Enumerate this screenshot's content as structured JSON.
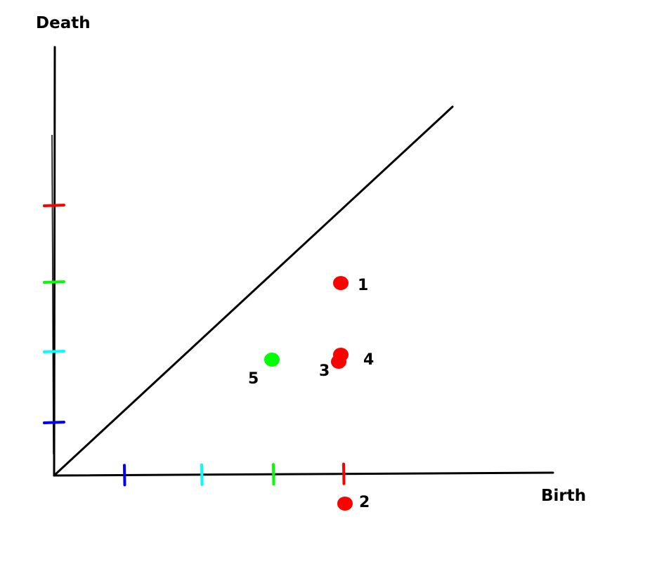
{
  "chart_data": {
    "type": "scatter",
    "title": "",
    "xlabel": "Birth",
    "ylabel": "Death",
    "grid": false,
    "xlim": [
      0,
      7.1
    ],
    "ylim": [
      -0.4,
      6.1
    ],
    "diagonal": {
      "from": [
        0,
        0
      ],
      "to": [
        5.67,
        5.25
      ]
    },
    "x_ticks": [
      {
        "value": 1,
        "color": "#0000ff"
      },
      {
        "value": 2.1,
        "color": "#00ffff"
      },
      {
        "value": 3.12,
        "color": "#00ff00"
      },
      {
        "value": 4.12,
        "color": "#ff0000"
      }
    ],
    "y_ticks": [
      {
        "value": 0.75,
        "color": "#0000ff"
      },
      {
        "value": 1.76,
        "color": "#00ffff"
      },
      {
        "value": 2.75,
        "color": "#00ff00"
      },
      {
        "value": 3.84,
        "color": "#ff0000"
      }
    ],
    "points": [
      {
        "label": "1",
        "x": 4.08,
        "y": 2.74,
        "color": "#ff0000"
      },
      {
        "label": "2",
        "x": 4.14,
        "y": -0.4,
        "color": "#ff0000"
      },
      {
        "label": "3",
        "x": 4.05,
        "y": 1.62,
        "color": "#ff0000"
      },
      {
        "label": "4",
        "x": 4.08,
        "y": 1.72,
        "color": "#ff0000"
      },
      {
        "label": "5",
        "x": 3.1,
        "y": 1.65,
        "color": "#00ff00"
      }
    ]
  }
}
